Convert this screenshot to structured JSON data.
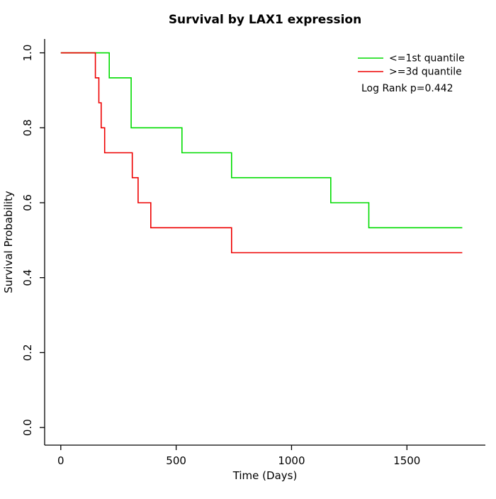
{
  "chart_data": {
    "type": "line",
    "subtype": "kaplan-meier-step",
    "title": "Survival by LAX1 expression",
    "xlabel": "Time (Days)",
    "ylabel": "Survival Probability",
    "xlim": [
      -70,
      1840
    ],
    "ylim": [
      -0.047,
      1.037
    ],
    "xticks": [
      0,
      500,
      1000,
      1500
    ],
    "yticks": [
      0,
      0.2,
      0.4,
      0.6,
      0.8,
      1.0
    ],
    "ytick_labels": [
      "0.0",
      "0.2",
      "0.4",
      "0.6",
      "0.8",
      "1.0"
    ],
    "grid": false,
    "axis_color": "#000000",
    "legend": {
      "position": "top-right",
      "entries": [
        {
          "label": "<=1st quantile",
          "color": "#00DC00"
        },
        {
          "label": ">=3d quantile",
          "color": "#EE0000"
        }
      ],
      "annotation": "Log Rank p=0.442"
    },
    "series": [
      {
        "name": "<=1st quantile",
        "color": "#00DC00",
        "step": true,
        "points": [
          [
            0,
            1.0
          ],
          [
            210,
            1.0
          ],
          [
            210,
            0.9333
          ],
          [
            305,
            0.9333
          ],
          [
            305,
            0.8
          ],
          [
            525,
            0.8
          ],
          [
            525,
            0.7333
          ],
          [
            740,
            0.7333
          ],
          [
            740,
            0.6667
          ],
          [
            1170,
            0.6667
          ],
          [
            1170,
            0.6
          ],
          [
            1335,
            0.6
          ],
          [
            1335,
            0.5333
          ],
          [
            1740,
            0.5333
          ]
        ]
      },
      {
        "name": ">=3d quantile",
        "color": "#EE0000",
        "step": true,
        "points": [
          [
            0,
            1.0
          ],
          [
            150,
            1.0
          ],
          [
            150,
            0.9333
          ],
          [
            165,
            0.9333
          ],
          [
            165,
            0.8667
          ],
          [
            175,
            0.8667
          ],
          [
            175,
            0.8
          ],
          [
            190,
            0.8
          ],
          [
            190,
            0.7333
          ],
          [
            310,
            0.7333
          ],
          [
            310,
            0.6667
          ],
          [
            335,
            0.6667
          ],
          [
            335,
            0.6
          ],
          [
            390,
            0.6
          ],
          [
            390,
            0.5333
          ],
          [
            740,
            0.5333
          ],
          [
            740,
            0.4667
          ],
          [
            1740,
            0.4667
          ]
        ]
      }
    ]
  }
}
